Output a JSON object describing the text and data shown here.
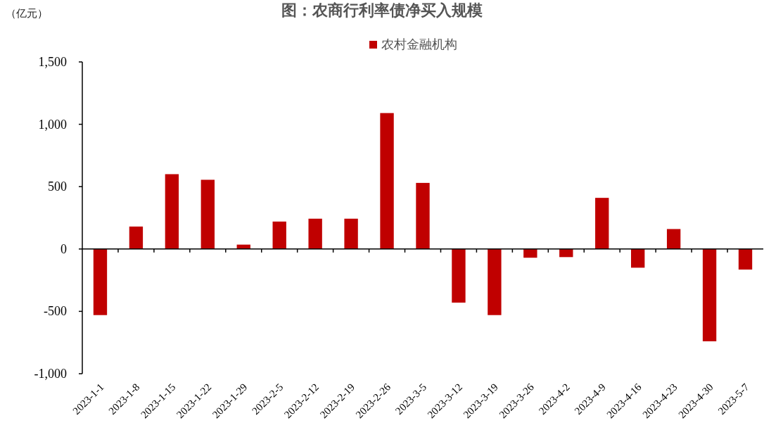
{
  "chart_data": {
    "type": "bar",
    "title": "图：农商行利率债净买入规模",
    "ylabel": "（亿元）",
    "categories": [
      "2023-1-1",
      "2023-1-8",
      "2023-1-15",
      "2023-1-22",
      "2023-1-29",
      "2023-2-5",
      "2023-2-12",
      "2023-2-19",
      "2023-2-26",
      "2023-3-5",
      "2023-3-12",
      "2023-3-19",
      "2023-3-26",
      "2023-4-2",
      "2023-4-9",
      "2023-4-16",
      "2023-4-23",
      "2023-4-30",
      "2023-5-7"
    ],
    "series": [
      {
        "name": "农村金融机构",
        "color": "#c00000",
        "values": [
          -530,
          180,
          600,
          555,
          35,
          220,
          243,
          243,
          1090,
          530,
          -430,
          -530,
          -70,
          -65,
          410,
          -150,
          160,
          -740,
          -165
        ]
      }
    ],
    "ylim": [
      -1000,
      1500
    ],
    "yticks": [
      {
        "value": -1000,
        "label": "-1,000"
      },
      {
        "value": -500,
        "label": "-500"
      },
      0,
      500,
      {
        "value": 1000,
        "label": "1,000"
      },
      {
        "value": 1500,
        "label": "1,500"
      }
    ],
    "legend": "top"
  }
}
